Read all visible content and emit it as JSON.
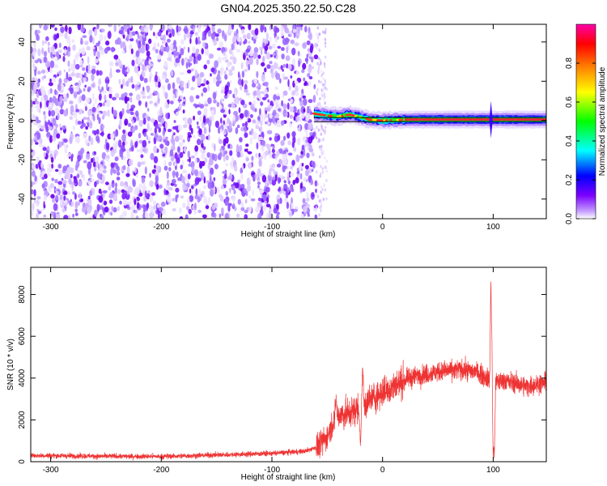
{
  "title": "GN04.2025.350.22.50.C28",
  "chart_data": [
    {
      "type": "heatmap",
      "subtype": "spectrogram",
      "xlabel": "Height of straight line (km)",
      "ylabel": "Frequency (Hz)",
      "xlim": [
        -318,
        148
      ],
      "ylim": [
        -50,
        49
      ],
      "x_ticks": [
        -300,
        -200,
        -100,
        0,
        100
      ],
      "x_tick_labels": [
        "-300",
        "-200",
        "-100",
        "0",
        "100"
      ],
      "y_ticks": [
        -40,
        -20,
        0,
        20,
        40
      ],
      "y_tick_labels": [
        "-40",
        "-20",
        "0",
        "20",
        "40"
      ],
      "noise_region_x": [
        -318,
        -60
      ],
      "sparse_noise_x": [
        -60,
        -50
      ],
      "signal_line_freq": 0.5,
      "signal_band": [
        {
          "x": -62,
          "f": 3.5
        },
        {
          "x": -50,
          "f": 2.5
        },
        {
          "x": -40,
          "f": 2.0
        },
        {
          "x": -30,
          "f": 3.0
        },
        {
          "x": -22,
          "f": 2.0
        },
        {
          "x": -12,
          "f": 0.5
        },
        {
          "x": 0,
          "f": 0.0
        },
        {
          "x": 12,
          "f": 0.3
        },
        {
          "x": 30,
          "f": 0.5
        },
        {
          "x": 60,
          "f": 0.5
        },
        {
          "x": 90,
          "f": 0.5
        },
        {
          "x": 100,
          "f": 0.5
        },
        {
          "x": 148,
          "f": 0.5
        }
      ],
      "grid": false,
      "colorbar": {
        "label": "Normalized spectral amplitude",
        "range": [
          0.0,
          1.0
        ],
        "ticks": [
          0.0,
          0.2,
          0.4,
          0.6,
          0.8
        ],
        "tick_labels": [
          "0.0",
          "0.2",
          "0.4",
          "0.6",
          "0.8"
        ],
        "colors": [
          "#ffffff",
          "#7b00ff",
          "#0000ff",
          "#00ffff",
          "#00ff00",
          "#ffff00",
          "#ff8000",
          "#ff0000",
          "#ff00ff"
        ]
      }
    },
    {
      "type": "line",
      "xlabel": "Height of straight line (km)",
      "ylabel": "SNR (10 * v/v)",
      "xlim": [
        -318,
        148
      ],
      "ylim": [
        0,
        9300
      ],
      "x_ticks": [
        -300,
        -200,
        -100,
        0,
        100
      ],
      "x_tick_labels": [
        "-300",
        "-200",
        "-100",
        "0",
        "100"
      ],
      "y_ticks": [
        0,
        2000,
        4000,
        6000,
        8000
      ],
      "y_tick_labels": [
        "0",
        "2000",
        "4000",
        "6000",
        "8000"
      ],
      "color": "#ee3333",
      "grid": false,
      "trend": [
        {
          "x": -318,
          "y": 300
        },
        {
          "x": -250,
          "y": 260
        },
        {
          "x": -200,
          "y": 250
        },
        {
          "x": -150,
          "y": 320
        },
        {
          "x": -100,
          "y": 400
        },
        {
          "x": -70,
          "y": 500
        },
        {
          "x": -60,
          "y": 700
        },
        {
          "x": -55,
          "y": 900
        },
        {
          "x": -50,
          "y": 1200
        },
        {
          "x": -45,
          "y": 1900
        },
        {
          "x": -40,
          "y": 2200
        },
        {
          "x": -30,
          "y": 2300
        },
        {
          "x": -20,
          "y": 2600
        },
        {
          "x": -10,
          "y": 3000
        },
        {
          "x": 0,
          "y": 3300
        },
        {
          "x": 10,
          "y": 3600
        },
        {
          "x": 20,
          "y": 3900
        },
        {
          "x": 30,
          "y": 4100
        },
        {
          "x": 50,
          "y": 4300
        },
        {
          "x": 70,
          "y": 4400
        },
        {
          "x": 85,
          "y": 4300
        },
        {
          "x": 95,
          "y": 4000
        },
        {
          "x": 100,
          "y": 3800
        },
        {
          "x": 110,
          "y": 3900
        },
        {
          "x": 130,
          "y": 3600
        },
        {
          "x": 148,
          "y": 3800
        }
      ],
      "spikes": [
        {
          "x": -42,
          "y": 3100
        },
        {
          "x": -18,
          "y": 4600
        },
        {
          "x": -20,
          "y": 700
        },
        {
          "x": 98,
          "y": 9200
        },
        {
          "x": 99,
          "y": 6200
        },
        {
          "x": 100,
          "y": 100
        },
        {
          "x": 101,
          "y": 50
        }
      ]
    }
  ]
}
